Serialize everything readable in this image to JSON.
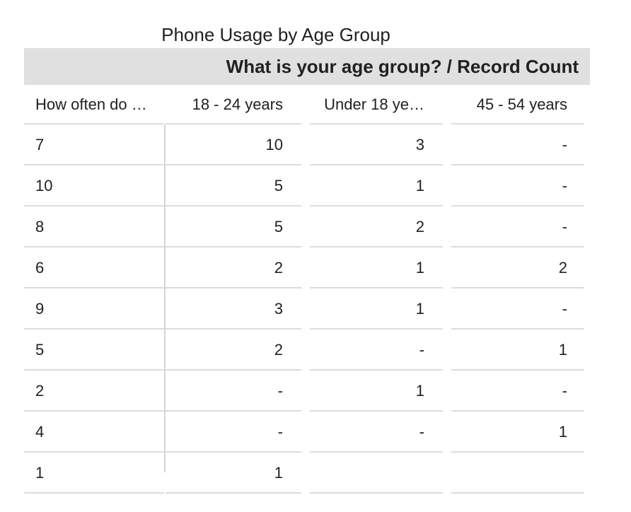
{
  "chart_data": {
    "type": "table",
    "title": "Phone Usage by Age Group",
    "column_group_label": "What is your age group? / Record Count",
    "columns": [
      "How often do …",
      "18 - 24 years",
      "Under 18 ye…",
      "45 - 54 years"
    ],
    "rows": [
      [
        "7",
        "10",
        "3",
        "-"
      ],
      [
        "10",
        "5",
        "1",
        "-"
      ],
      [
        "8",
        "5",
        "2",
        "-"
      ],
      [
        "6",
        "2",
        "1",
        "2"
      ],
      [
        "9",
        "3",
        "1",
        "-"
      ],
      [
        "5",
        "2",
        "-",
        "1"
      ],
      [
        "2",
        "-",
        "1",
        "-"
      ],
      [
        "4",
        "-",
        "-",
        "1"
      ],
      [
        "1",
        "1",
        "",
        ""
      ]
    ]
  }
}
